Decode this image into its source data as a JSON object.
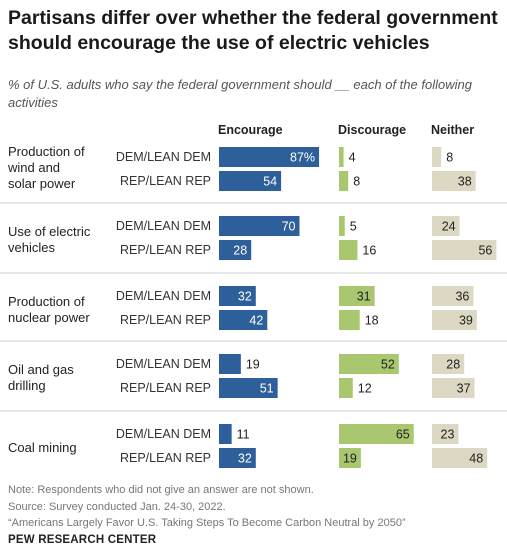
{
  "header": {
    "title": "Partisans differ over whether the federal government should encourage the use of electric vehicles",
    "subtitle": "% of U.S. adults who say the federal government should __ each of the following activities"
  },
  "chart_data": {
    "type": "bar",
    "columns": [
      "Encourage",
      "Discourage",
      "Neither"
    ],
    "groups": [
      {
        "activity": [
          "Production of",
          "wind and",
          "solar power"
        ],
        "rows": [
          {
            "party": "DEM/LEAN DEM",
            "values": [
              87,
              4,
              8
            ],
            "labels": [
              "87%",
              "4",
              "8"
            ]
          },
          {
            "party": "REP/LEAN REP",
            "values": [
              54,
              8,
              38
            ],
            "labels": [
              "54",
              "8",
              "38"
            ]
          }
        ]
      },
      {
        "activity": [
          "Use of electric",
          "vehicles"
        ],
        "rows": [
          {
            "party": "DEM/LEAN DEM",
            "values": [
              70,
              5,
              24
            ],
            "labels": [
              "70",
              "5",
              "24"
            ]
          },
          {
            "party": "REP/LEAN REP",
            "values": [
              28,
              16,
              56
            ],
            "labels": [
              "28",
              "16",
              "56"
            ]
          }
        ]
      },
      {
        "activity": [
          "Production of",
          "nuclear power"
        ],
        "rows": [
          {
            "party": "DEM/LEAN DEM",
            "values": [
              32,
              31,
              36
            ],
            "labels": [
              "32",
              "31",
              "36"
            ]
          },
          {
            "party": "REP/LEAN REP",
            "values": [
              42,
              18,
              39
            ],
            "labels": [
              "42",
              "18",
              "39"
            ]
          }
        ]
      },
      {
        "activity": [
          "Oil and gas",
          "drilling"
        ],
        "rows": [
          {
            "party": "DEM/LEAN DEM",
            "values": [
              19,
              52,
              28
            ],
            "labels": [
              "19",
              "52",
              "28"
            ]
          },
          {
            "party": "REP/LEAN REP",
            "values": [
              51,
              12,
              37
            ],
            "labels": [
              "51",
              "12",
              "37"
            ]
          }
        ]
      },
      {
        "activity": [
          "Coal mining"
        ],
        "rows": [
          {
            "party": "DEM/LEAN DEM",
            "values": [
              11,
              65,
              23
            ],
            "labels": [
              "11",
              "65",
              "23"
            ]
          },
          {
            "party": "REP/LEAN REP",
            "values": [
              32,
              19,
              48
            ],
            "labels": [
              "32",
              "19",
              "48"
            ]
          }
        ]
      }
    ],
    "colors": {
      "encourage": "#2d5f9a",
      "discourage": "#a8c76f",
      "neither": "#dcd8c4"
    }
  },
  "footer": {
    "note": "Note: Respondents who did not give an answer are not shown.",
    "source": "Source: Survey conducted Jan. 24-30, 2022.",
    "report": "“Americans Largely Favor U.S. Taking Steps To Become Carbon Neutral by 2050”",
    "brand": "PEW RESEARCH CENTER"
  }
}
